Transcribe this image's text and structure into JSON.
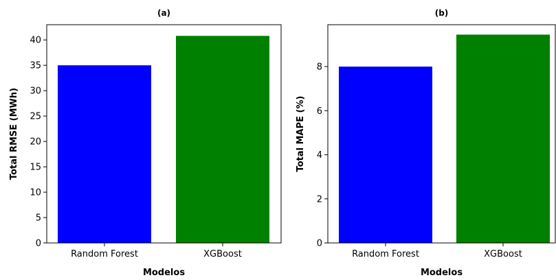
{
  "chart_data": [
    {
      "type": "bar",
      "title": "(a)",
      "xlabel": "Modelos",
      "ylabel": "Total RMSE (MWh)",
      "categories": [
        "Random Forest",
        "XGBoost"
      ],
      "values": [
        35.0,
        40.8
      ],
      "colors": [
        "#0000ff",
        "#008000"
      ],
      "ylim": [
        0,
        43
      ],
      "yticks": [
        0,
        5,
        10,
        15,
        20,
        25,
        30,
        35,
        40
      ],
      "grid": false
    },
    {
      "type": "bar",
      "title": "(b)",
      "xlabel": "Modelos",
      "ylabel": "Total MAPE (%)",
      "categories": [
        "Random Forest",
        "XGBoost"
      ],
      "values": [
        8.0,
        9.45
      ],
      "colors": [
        "#0000ff",
        "#008000"
      ],
      "ylim": [
        0,
        9.9
      ],
      "yticks": [
        0,
        2,
        4,
        6,
        8
      ],
      "grid": false
    }
  ]
}
